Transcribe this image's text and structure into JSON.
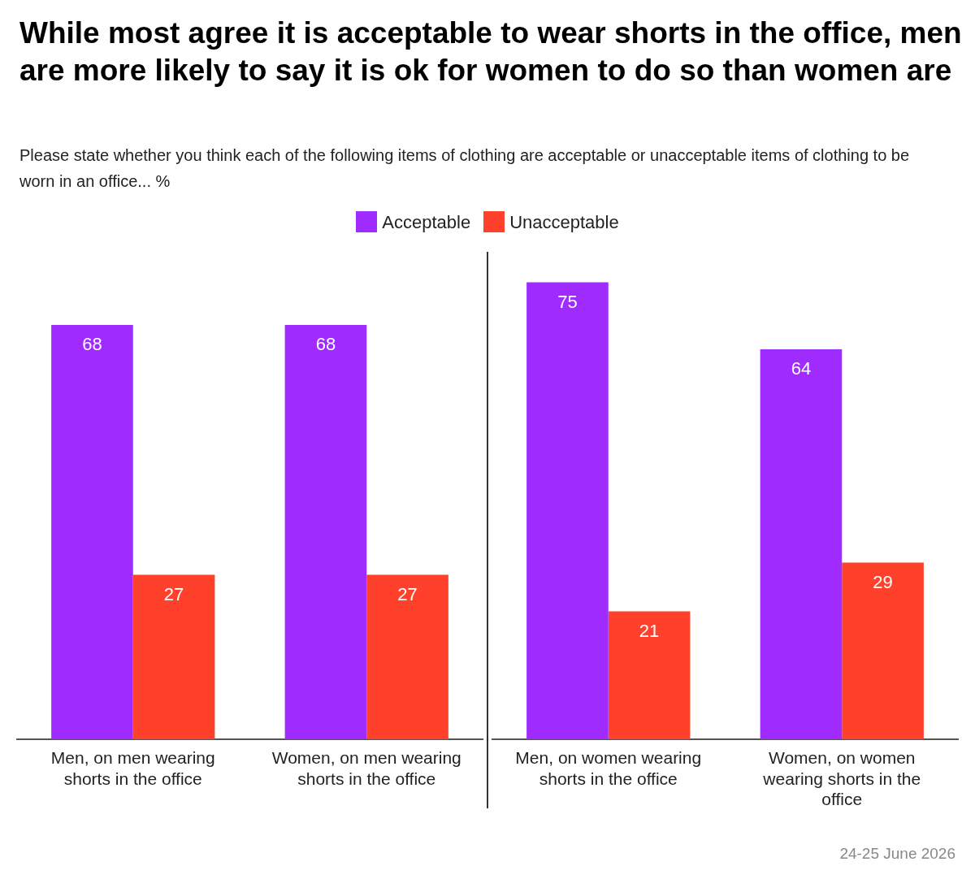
{
  "chart_data": [
    {
      "type": "bar",
      "title": "While most agree it is acceptable to wear shorts in the office, men are more likely to say it is ok for women to do so than women are",
      "subtitle": "Please state whether you think each of the following items of clothing are acceptable or unacceptable items of clothing to be worn in an office... %",
      "categories": [
        "Men, on men wearing shorts in the office",
        "Women, on men wearing shorts in the office"
      ],
      "series": [
        {
          "name": "Acceptable",
          "color": "#a02bfe",
          "values": [
            68,
            68
          ]
        },
        {
          "name": "Unacceptable",
          "color": "#ff412c",
          "values": [
            27,
            27
          ]
        }
      ],
      "data_labels": true,
      "legend": "top",
      "grid": false
    },
    {
      "type": "bar",
      "categories": [
        "Men, on women wearing shorts in the office",
        "Women, on women wearing shorts in the office"
      ],
      "series": [
        {
          "color": "#a02bfe",
          "values": [
            75,
            64
          ]
        },
        {
          "color": "#ff412c",
          "values": [
            21,
            29
          ]
        }
      ],
      "data_labels": true,
      "grid": false,
      "annotations": [
        "24-25 June 2026"
      ]
    }
  ]
}
